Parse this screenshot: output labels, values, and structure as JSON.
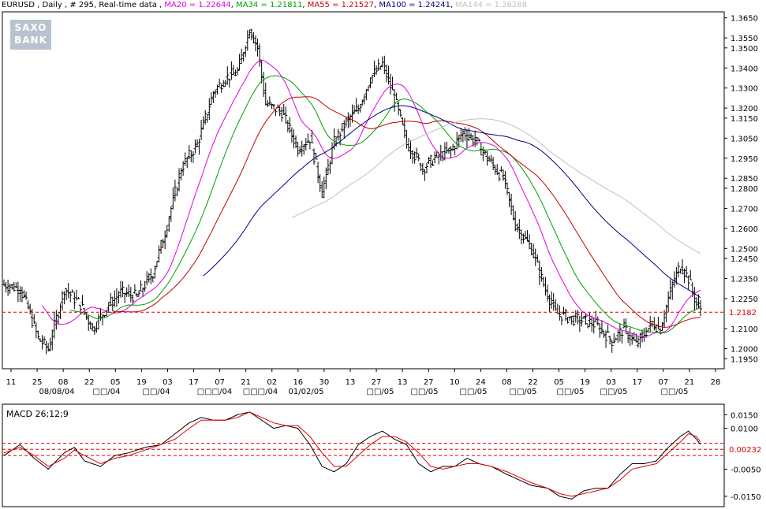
{
  "header": {
    "symbol": "EURUSD",
    "period": "Daily",
    "bars_label": "# 295",
    "feed": "Real-time data",
    "ma": [
      {
        "label": "MA20 = 1.22644",
        "color": "#e000e0"
      },
      {
        "label": "MA34 = 1.21811",
        "color": "#00a000"
      },
      {
        "label": "MA55 = 1.21527",
        "color": "#c00000"
      },
      {
        "label": "MA100 = 1.24241",
        "color": "#000080"
      },
      {
        "label": "MA144 = 1.26288",
        "color": "#c0c0c0"
      }
    ]
  },
  "logo": {
    "line1": "SAXO",
    "line2": "BANK"
  },
  "chart_data": [
    {
      "type": "ohlc",
      "title": "EURUSD , Daily , # 295, Real-time data",
      "ylim": [
        1.19,
        1.368
      ],
      "y_ticks": [
        "1.3650",
        "1.3550",
        "1.3500",
        "1.3400",
        "1.3300",
        "1.3200",
        "1.3150",
        "1.3050",
        "1.2950",
        "1.2850",
        "1.2800",
        "1.2700",
        "1.2600",
        "1.2500",
        "1.2450",
        "1.2350",
        "1.2250",
        "1.2100",
        "1.2000",
        "1.1950"
      ],
      "current_price": "1.2182",
      "x_day_labels": [
        "11",
        "25",
        "08",
        "22",
        "05",
        "19",
        "03",
        "17",
        "07",
        "21",
        "02",
        "16",
        "30",
        "13",
        "27",
        "13",
        "27",
        "10",
        "24",
        "08",
        "22",
        "05",
        "19",
        "03",
        "17",
        "07",
        "21",
        "28"
      ],
      "x_month_labels": [
        "08/08/04",
        "□□/04",
        "□□/04",
        "□□□/04",
        "□□□/04",
        "01/02/05",
        "□□/05",
        "□□/05",
        "□□/05",
        "□□/05",
        "□□/05",
        "□□/05",
        "□□/05"
      ],
      "price_anchors": [
        [
          0,
          1.232
        ],
        [
          8,
          1.23
        ],
        [
          12,
          1.22
        ],
        [
          17,
          1.205
        ],
        [
          22,
          1.2
        ],
        [
          30,
          1.23
        ],
        [
          38,
          1.222
        ],
        [
          44,
          1.21
        ],
        [
          52,
          1.222
        ],
        [
          58,
          1.228
        ],
        [
          66,
          1.226
        ],
        [
          74,
          1.238
        ],
        [
          80,
          1.258
        ],
        [
          88,
          1.29
        ],
        [
          96,
          1.302
        ],
        [
          104,
          1.328
        ],
        [
          110,
          1.335
        ],
        [
          116,
          1.338
        ],
        [
          122,
          1.36
        ],
        [
          126,
          1.35
        ],
        [
          130,
          1.322
        ],
        [
          138,
          1.318
        ],
        [
          146,
          1.3
        ],
        [
          152,
          1.305
        ],
        [
          158,
          1.278
        ],
        [
          164,
          1.303
        ],
        [
          170,
          1.313
        ],
        [
          176,
          1.32
        ],
        [
          182,
          1.335
        ],
        [
          188,
          1.342
        ],
        [
          194,
          1.325
        ],
        [
          200,
          1.303
        ],
        [
          208,
          1.29
        ],
        [
          214,
          1.295
        ],
        [
          222,
          1.299
        ],
        [
          228,
          1.308
        ],
        [
          234,
          1.304
        ],
        [
          240,
          1.295
        ],
        [
          248,
          1.285
        ],
        [
          254,
          1.262
        ],
        [
          262,
          1.25
        ],
        [
          268,
          1.232
        ],
        [
          274,
          1.218
        ],
        [
          282,
          1.215
        ],
        [
          288,
          1.214
        ],
        [
          294,
          1.212
        ],
        [
          302,
          1.204
        ],
        [
          308,
          1.21
        ],
        [
          314,
          1.202
        ],
        [
          322,
          1.213
        ],
        [
          326,
          1.21
        ],
        [
          332,
          1.232
        ],
        [
          336,
          1.242
        ],
        [
          340,
          1.235
        ],
        [
          344,
          1.222
        ],
        [
          346,
          1.22
        ]
      ],
      "moving_averages": [
        {
          "name": "MA20",
          "period": 20,
          "color": "#e000e0"
        },
        {
          "name": "MA34",
          "period": 34,
          "color": "#00a000"
        },
        {
          "name": "MA55",
          "period": 55,
          "color": "#c00000"
        },
        {
          "name": "MA100",
          "period": 100,
          "color": "#000080"
        },
        {
          "name": "MA144",
          "period": 144,
          "color": "#c0c0c0"
        }
      ]
    },
    {
      "type": "line",
      "title": "MACD 26;12;9",
      "ylim": [
        -0.0185,
        0.018
      ],
      "y_ticks": [
        "0.0150",
        "0.0100",
        "-0.0050",
        "-0.0150"
      ],
      "current_value": "0.00232",
      "signal_lines": [
        0.0045,
        0.0023,
        0.0
      ],
      "series": [
        {
          "color": "#000000",
          "anchors": [
            [
              0,
              0.0
            ],
            [
              8,
              0.004
            ],
            [
              15,
              -0.001
            ],
            [
              22,
              -0.005
            ],
            [
              30,
              0.001
            ],
            [
              35,
              0.003
            ],
            [
              40,
              -0.002
            ],
            [
              48,
              -0.004
            ],
            [
              55,
              0.0
            ],
            [
              62,
              0.001
            ],
            [
              70,
              0.003
            ],
            [
              78,
              0.004
            ],
            [
              85,
              0.008
            ],
            [
              92,
              0.012
            ],
            [
              98,
              0.014
            ],
            [
              104,
              0.013
            ],
            [
              110,
              0.013
            ],
            [
              116,
              0.015
            ],
            [
              122,
              0.016
            ],
            [
              128,
              0.013
            ],
            [
              134,
              0.01
            ],
            [
              140,
              0.011
            ],
            [
              146,
              0.01
            ],
            [
              152,
              0.004
            ],
            [
              158,
              -0.004
            ],
            [
              164,
              -0.006
            ],
            [
              170,
              -0.003
            ],
            [
              176,
              0.004
            ],
            [
              182,
              0.007
            ],
            [
              188,
              0.009
            ],
            [
              194,
              0.006
            ],
            [
              200,
              0.004
            ],
            [
              206,
              -0.003
            ],
            [
              212,
              -0.006
            ],
            [
              218,
              -0.004
            ],
            [
              224,
              -0.004
            ],
            [
              230,
              -0.001
            ],
            [
              236,
              -0.003
            ],
            [
              242,
              -0.004
            ],
            [
              250,
              -0.007
            ],
            [
              256,
              -0.009
            ],
            [
              262,
              -0.011
            ],
            [
              270,
              -0.012
            ],
            [
              276,
              -0.015
            ],
            [
              282,
              -0.016
            ],
            [
              288,
              -0.013
            ],
            [
              294,
              -0.012
            ],
            [
              300,
              -0.012
            ],
            [
              306,
              -0.007
            ],
            [
              312,
              -0.003
            ],
            [
              318,
              -0.003
            ],
            [
              324,
              -0.002
            ],
            [
              330,
              0.003
            ],
            [
              336,
              0.007
            ],
            [
              340,
              0.009
            ],
            [
              344,
              0.006
            ],
            [
              346,
              0.004
            ]
          ]
        },
        {
          "color": "#e00000",
          "anchors": [
            [
              0,
              0.001
            ],
            [
              8,
              0.003
            ],
            [
              15,
              0.0
            ],
            [
              22,
              -0.004
            ],
            [
              30,
              -0.001
            ],
            [
              35,
              0.002
            ],
            [
              40,
              0.0
            ],
            [
              48,
              -0.003
            ],
            [
              55,
              -0.001
            ],
            [
              62,
              0.0
            ],
            [
              70,
              0.002
            ],
            [
              78,
              0.004
            ],
            [
              85,
              0.006
            ],
            [
              92,
              0.01
            ],
            [
              98,
              0.013
            ],
            [
              104,
              0.013
            ],
            [
              110,
              0.013
            ],
            [
              116,
              0.014
            ],
            [
              122,
              0.016
            ],
            [
              128,
              0.014
            ],
            [
              134,
              0.012
            ],
            [
              140,
              0.011
            ],
            [
              146,
              0.011
            ],
            [
              152,
              0.007
            ],
            [
              158,
              0.001
            ],
            [
              164,
              -0.004
            ],
            [
              170,
              -0.004
            ],
            [
              176,
              0.0
            ],
            [
              182,
              0.004
            ],
            [
              188,
              0.007
            ],
            [
              194,
              0.007
            ],
            [
              200,
              0.005
            ],
            [
              206,
              0.001
            ],
            [
              212,
              -0.004
            ],
            [
              218,
              -0.005
            ],
            [
              224,
              -0.004
            ],
            [
              230,
              -0.003
            ],
            [
              236,
              -0.003
            ],
            [
              242,
              -0.004
            ],
            [
              250,
              -0.006
            ],
            [
              256,
              -0.008
            ],
            [
              262,
              -0.01
            ],
            [
              270,
              -0.012
            ],
            [
              276,
              -0.014
            ],
            [
              282,
              -0.015
            ],
            [
              288,
              -0.014
            ],
            [
              294,
              -0.013
            ],
            [
              300,
              -0.012
            ],
            [
              306,
              -0.009
            ],
            [
              312,
              -0.005
            ],
            [
              318,
              -0.004
            ],
            [
              324,
              -0.003
            ],
            [
              330,
              0.001
            ],
            [
              336,
              0.005
            ],
            [
              340,
              0.008
            ],
            [
              344,
              0.007
            ],
            [
              346,
              0.005
            ]
          ]
        }
      ]
    }
  ]
}
